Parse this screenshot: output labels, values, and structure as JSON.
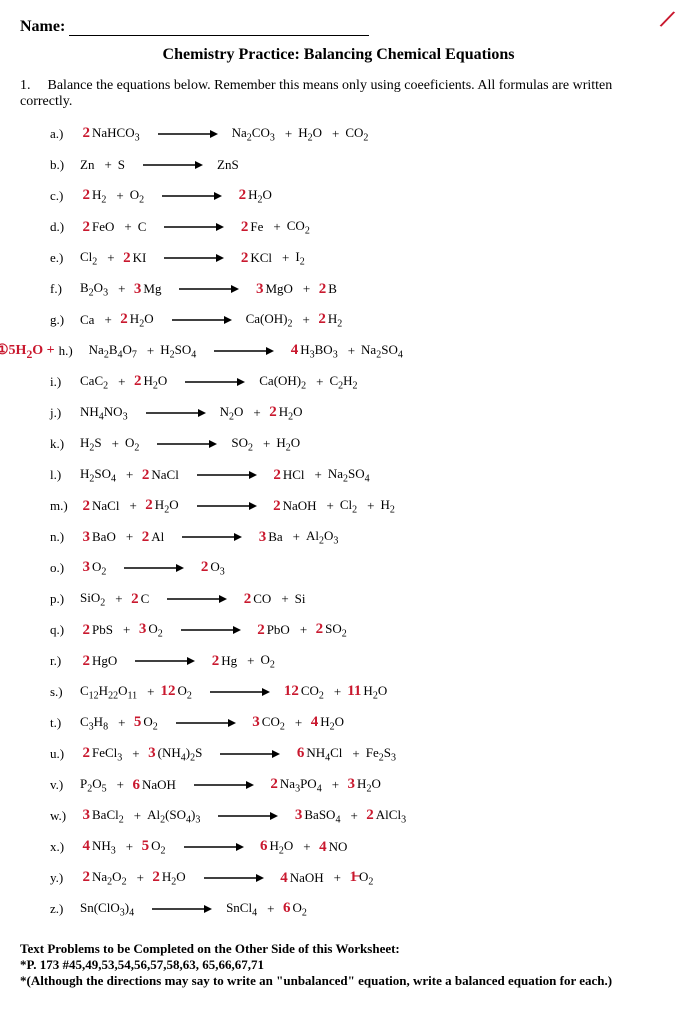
{
  "header": {
    "name_label": "Name:",
    "title": "Chemistry Practice: Balancing Chemical Equations"
  },
  "question": {
    "number": "1.",
    "text": "Balance the equations below.  Remember this means only using coeeficients.  All formulas are written correctly."
  },
  "corner_mark": "/",
  "colors": {
    "ink": "#000000",
    "handwriting": "#c9182e",
    "background": "#ffffff"
  },
  "arrow": {
    "length": 60,
    "stroke_width": 1.5
  },
  "equations": [
    {
      "label": "a.)",
      "lhs": [
        {
          "c": "2",
          "f": "NaHCO<sub>3</sub>"
        }
      ],
      "rhs": [
        {
          "c": "",
          "f": "Na<sub>2</sub>CO<sub>3</sub>"
        },
        {
          "c": "",
          "f": "H<sub>2</sub>O"
        },
        {
          "c": "",
          "f": "CO<sub>2</sub>"
        }
      ]
    },
    {
      "label": "b.)",
      "lhs": [
        {
          "c": "",
          "f": "Zn"
        },
        {
          "c": "",
          "f": "S"
        }
      ],
      "rhs": [
        {
          "c": "",
          "f": "ZnS"
        }
      ]
    },
    {
      "label": "c.)",
      "lhs": [
        {
          "c": "2",
          "f": "H<sub>2</sub>"
        },
        {
          "c": "",
          "f": "O<sub>2</sub>"
        }
      ],
      "rhs": [
        {
          "c": "2",
          "f": "H<sub>2</sub>O"
        }
      ]
    },
    {
      "label": "d.)",
      "lhs": [
        {
          "c": "2",
          "f": "FeO"
        },
        {
          "c": "",
          "f": "C"
        }
      ],
      "rhs": [
        {
          "c": "2",
          "f": "Fe"
        },
        {
          "c": "",
          "f": "CO<sub>2</sub>"
        }
      ]
    },
    {
      "label": "e.)",
      "lhs": [
        {
          "c": "",
          "f": "Cl<sub>2</sub>"
        },
        {
          "c": "2",
          "f": "KI"
        }
      ],
      "rhs": [
        {
          "c": "2",
          "f": "KCl"
        },
        {
          "c": "",
          "f": "I<sub>2</sub>"
        }
      ]
    },
    {
      "label": "f.)",
      "lhs": [
        {
          "c": "",
          "f": "B<sub>2</sub>O<sub>3</sub>"
        },
        {
          "c": "3",
          "f": "Mg"
        }
      ],
      "rhs": [
        {
          "c": "3",
          "f": "MgO"
        },
        {
          "c": "2",
          "f": "B"
        }
      ]
    },
    {
      "label": "g.)",
      "lhs": [
        {
          "c": "",
          "f": "Ca"
        },
        {
          "c": "2",
          "f": "H<sub>2</sub>O"
        }
      ],
      "rhs": [
        {
          "c": "",
          "f": "Ca(OH)<sub>2</sub>"
        },
        {
          "c": "2",
          "f": "H<sub>2</sub>"
        }
      ]
    },
    {
      "label": "h.)",
      "margin": "①5H<sub>2</sub>O +",
      "lhs": [
        {
          "c": "",
          "f": "Na<sub>2</sub>B<sub>4</sub>O<sub>7</sub>"
        },
        {
          "c": "",
          "f": "H<sub>2</sub>SO<sub>4</sub>"
        }
      ],
      "rhs": [
        {
          "c": "4",
          "f": "H<sub>3</sub>BO<sub>3</sub>"
        },
        {
          "c": "",
          "f": "Na<sub>2</sub>SO<sub>4</sub>"
        }
      ]
    },
    {
      "label": "i.)",
      "lhs": [
        {
          "c": "",
          "f": "CaC<sub>2</sub>"
        },
        {
          "c": "2",
          "f": "H<sub>2</sub>O"
        }
      ],
      "rhs": [
        {
          "c": "",
          "f": "Ca(OH)<sub>2</sub>"
        },
        {
          "c": "",
          "f": "C<sub>2</sub>H<sub>2</sub>"
        }
      ]
    },
    {
      "label": "j.)",
      "lhs": [
        {
          "c": "",
          "f": "NH<sub>4</sub>NO<sub>3</sub>"
        }
      ],
      "rhs": [
        {
          "c": "",
          "f": "N<sub>2</sub>O"
        },
        {
          "c": "2",
          "f": "H<sub>2</sub>O"
        }
      ]
    },
    {
      "label": "k.)",
      "lhs": [
        {
          "c": "",
          "f": "H<sub>2</sub>S"
        },
        {
          "c": "",
          "f": "O<sub>2</sub>"
        }
      ],
      "rhs": [
        {
          "c": "",
          "f": "SO<sub>2</sub>"
        },
        {
          "c": "",
          "f": "H<sub>2</sub>O"
        }
      ]
    },
    {
      "label": "l.)",
      "lhs": [
        {
          "c": "",
          "f": "H<sub>2</sub>SO<sub>4</sub>"
        },
        {
          "c": "2",
          "f": "NaCl"
        }
      ],
      "rhs": [
        {
          "c": "2",
          "f": "HCl"
        },
        {
          "c": "",
          "f": "Na<sub>2</sub>SO<sub>4</sub>"
        }
      ]
    },
    {
      "label": "m.)",
      "lhs": [
        {
          "c": "2",
          "f": "NaCl"
        },
        {
          "c": "2",
          "f": "H<sub>2</sub>O"
        }
      ],
      "rhs": [
        {
          "c": "2",
          "f": "NaOH"
        },
        {
          "c": "",
          "f": "Cl<sub>2</sub>"
        },
        {
          "c": "",
          "f": "H<sub>2</sub>"
        }
      ]
    },
    {
      "label": "n.)",
      "lhs": [
        {
          "c": "3",
          "f": "BaO"
        },
        {
          "c": "2",
          "f": "Al"
        }
      ],
      "rhs": [
        {
          "c": "3",
          "f": "Ba"
        },
        {
          "c": "",
          "f": "Al<sub>2</sub>O<sub>3</sub>"
        }
      ]
    },
    {
      "label": "o.)",
      "lhs": [
        {
          "c": "3",
          "f": "O<sub>2</sub>"
        }
      ],
      "rhs": [
        {
          "c": "2",
          "f": "O<sub>3</sub>"
        }
      ]
    },
    {
      "label": "p.)",
      "lhs": [
        {
          "c": "",
          "f": "SiO<sub>2</sub>"
        },
        {
          "c": "2",
          "f": "C"
        }
      ],
      "rhs": [
        {
          "c": "2",
          "f": "CO"
        },
        {
          "c": "",
          "f": "Si"
        }
      ]
    },
    {
      "label": "q.)",
      "lhs": [
        {
          "c": "2",
          "f": "PbS"
        },
        {
          "c": "3",
          "f": "O<sub>2</sub>"
        }
      ],
      "rhs": [
        {
          "c": "2",
          "f": "PbO"
        },
        {
          "c": "2",
          "f": "SO<sub>2</sub>"
        }
      ]
    },
    {
      "label": "r.)",
      "lhs": [
        {
          "c": "2",
          "f": "HgO"
        }
      ],
      "rhs": [
        {
          "c": "2",
          "f": "Hg"
        },
        {
          "c": "",
          "f": "O<sub>2</sub>"
        }
      ]
    },
    {
      "label": "s.)",
      "lhs": [
        {
          "c": "",
          "f": "C<sub>12</sub>H<sub>22</sub>O<sub>11</sub>"
        },
        {
          "c": "12",
          "f": "O<sub>2</sub>"
        }
      ],
      "rhs": [
        {
          "c": "12",
          "f": "CO<sub>2</sub>"
        },
        {
          "c": "11",
          "f": "H<sub>2</sub>O"
        }
      ]
    },
    {
      "label": "t.)",
      "lhs": [
        {
          "c": "",
          "f": "C<sub>3</sub>H<sub>8</sub>"
        },
        {
          "c": "5",
          "f": "O<sub>2</sub>"
        }
      ],
      "rhs": [
        {
          "c": "3",
          "f": "CO<sub>2</sub>"
        },
        {
          "c": "4",
          "f": "H<sub>2</sub>O"
        }
      ]
    },
    {
      "label": "u.)",
      "lhs": [
        {
          "c": "2",
          "f": "FeCl<sub>3</sub>"
        },
        {
          "c": "3",
          "f": "(NH<sub>4</sub>)<sub>2</sub>S"
        }
      ],
      "rhs": [
        {
          "c": "6",
          "f": "NH<sub>4</sub>Cl"
        },
        {
          "c": "",
          "f": "Fe<sub>2</sub>S<sub>3</sub>"
        }
      ]
    },
    {
      "label": "v.)",
      "lhs": [
        {
          "c": "",
          "f": "P<sub>2</sub>O<sub>5</sub>"
        },
        {
          "c": "6",
          "f": "NaOH"
        }
      ],
      "rhs": [
        {
          "c": "2",
          "f": "Na<sub>3</sub>PO<sub>4</sub>"
        },
        {
          "c": "3",
          "f": "H<sub>2</sub>O"
        }
      ]
    },
    {
      "label": "w.)",
      "lhs": [
        {
          "c": "3",
          "f": "BaCl<sub>2</sub>"
        },
        {
          "c": "",
          "f": "Al<sub>2</sub>(SO<sub>4</sub>)<sub>3</sub>"
        }
      ],
      "rhs": [
        {
          "c": "3",
          "f": "BaSO<sub>4</sub>"
        },
        {
          "c": "2",
          "f": "AlCl<sub>3</sub>"
        }
      ]
    },
    {
      "label": "x.)",
      "lhs": [
        {
          "c": "4",
          "f": "NH<sub>3</sub>"
        },
        {
          "c": "5",
          "f": "O<sub>2</sub>"
        }
      ],
      "rhs": [
        {
          "c": "6",
          "f": "H<sub>2</sub>O"
        },
        {
          "c": "4",
          "f": "NO"
        }
      ]
    },
    {
      "label": "y.)",
      "lhs": [
        {
          "c": "2",
          "f": "Na<sub>2</sub>O<sub>2</sub>"
        },
        {
          "c": "2",
          "f": "H<sub>2</sub>O"
        }
      ],
      "rhs": [
        {
          "c": "4",
          "f": "NaOH"
        },
        {
          "c": "1̶",
          "f": "O<sub>2</sub>"
        }
      ]
    },
    {
      "label": "z.)",
      "lhs": [
        {
          "c": "",
          "f": "Sn(ClO<sub>3</sub>)<sub>4</sub>"
        }
      ],
      "rhs": [
        {
          "c": "",
          "f": "SnCl<sub>4</sub>"
        },
        {
          "c": "6",
          "f": "O<sub>2</sub>"
        }
      ]
    }
  ],
  "footer": {
    "line1": "Text Problems to be Completed on the Other Side of this Worksheet:",
    "line2": "*P. 173 #45,49,53,54,56,57,58,63, 65,66,67,71",
    "line3": "*(Although the directions may say to write an \"unbalanced\" equation, write a balanced equation for each.)"
  }
}
